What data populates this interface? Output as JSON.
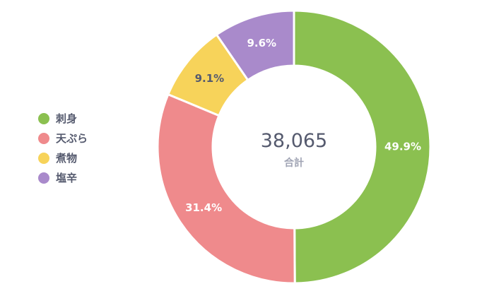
{
  "chart_data": {
    "type": "pie",
    "variant": "donut",
    "title": "",
    "legend_position": "left",
    "categories": [
      "刺身",
      "天ぷら",
      "煮物",
      "塩辛"
    ],
    "values": [
      49.9,
      31.4,
      9.1,
      9.6
    ],
    "value_labels": [
      "49.9%",
      "31.4%",
      "9.1%",
      "9.6%"
    ],
    "colors": [
      "#8bc050",
      "#ef8a8c",
      "#f7d35a",
      "#a98acb"
    ],
    "label_colors": [
      "#ffffff",
      "#ffffff",
      "#555a6e",
      "#ffffff"
    ],
    "center": {
      "value": "38,065",
      "label": "合計"
    }
  }
}
